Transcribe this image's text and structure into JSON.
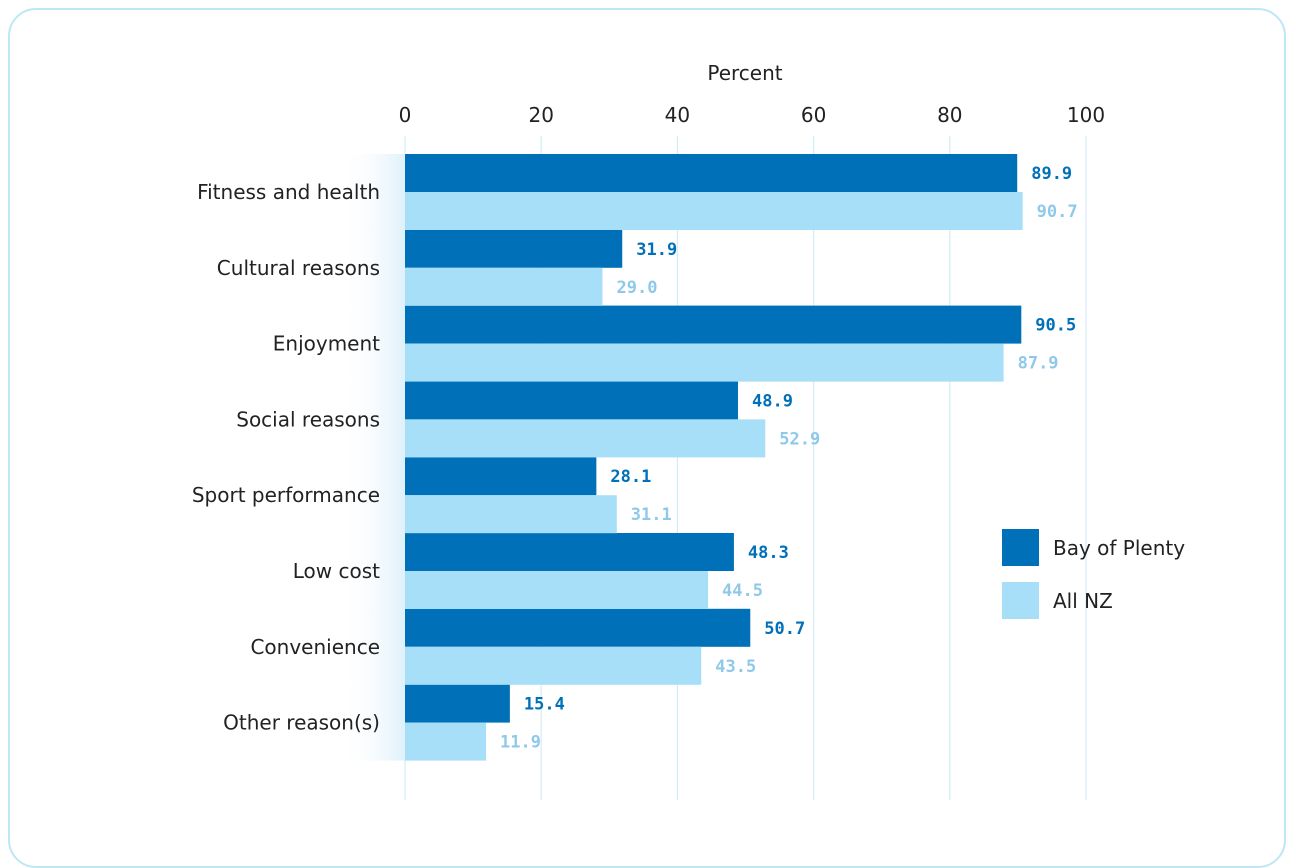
{
  "chart_data": {
    "type": "bar",
    "orientation": "horizontal",
    "xlabel": "Percent",
    "xlim": [
      0,
      100
    ],
    "xticks": [
      0,
      20,
      40,
      60,
      80,
      100
    ],
    "grid": true,
    "legend_position": "right",
    "categories": [
      "Fitness and health",
      "Cultural reasons",
      "Enjoyment",
      "Social reasons",
      "Sport performance",
      "Low cost",
      "Convenience",
      "Other reason(s)"
    ],
    "series": [
      {
        "name": "Bay of Plenty",
        "color": "#0070b8",
        "label_color": "#0070b8",
        "values": [
          89.9,
          31.9,
          90.5,
          48.9,
          28.1,
          48.3,
          50.7,
          15.4
        ],
        "labels": [
          "89.9",
          "31.9",
          "90.5",
          "48.9",
          "28.1",
          "48.3",
          "50.7",
          "15.4"
        ]
      },
      {
        "name": "All NZ",
        "color": "#a6dff7",
        "label_color": "#8fc9ea",
        "values": [
          90.7,
          29.0,
          87.9,
          52.9,
          31.1,
          44.5,
          43.5,
          11.9
        ],
        "labels": [
          "90.7",
          "29.0",
          "87.9",
          "52.9",
          "31.1",
          "44.5",
          "43.5",
          "11.9"
        ]
      }
    ]
  }
}
